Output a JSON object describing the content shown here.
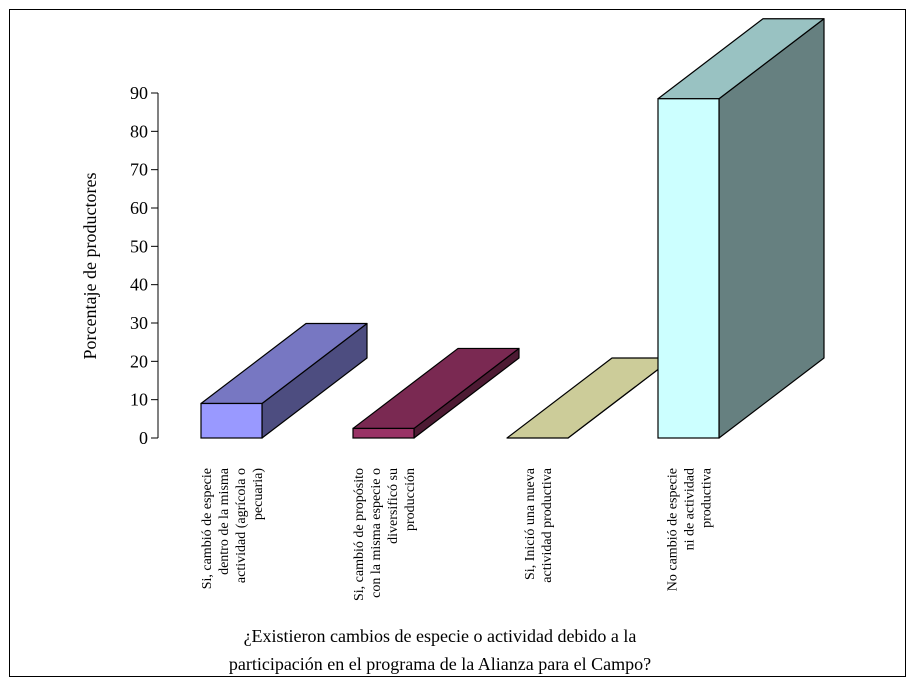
{
  "chart_data": {
    "type": "bar",
    "style": "3d-column",
    "categories": [
      [
        "Si, cambió de especie",
        "dentro de la misma",
        "actividad (agrícola o",
        "pecuaria)"
      ],
      [
        "Si, cambió de propósito",
        "con la misma especie o",
        "diversificó su",
        "producción"
      ],
      [
        "Si, Inició una nueva",
        "actividad productiva"
      ],
      [
        "No cambió de especie",
        "ni de actividad",
        "productiva"
      ]
    ],
    "values": [
      9,
      2.5,
      0,
      88.5
    ],
    "ylabel": "Porcentaje de productores",
    "xlabel": [
      "¿Existieron cambios de especie o actividad debido a la",
      "participación en el programa de la Alianza para el Campo?"
    ],
    "ylim": [
      0,
      90
    ],
    "yticks": [
      0,
      10,
      20,
      30,
      40,
      50,
      60,
      70,
      80,
      90
    ],
    "grid": false,
    "legend": "none",
    "colors": [
      {
        "front": "#9999ff",
        "side": "#4d4d80",
        "top": "#7777c2"
      },
      {
        "front": "#993366",
        "side": "#4d1a33",
        "top": "#7a2952"
      },
      {
        "front": "#ffffcc",
        "side": "#808066",
        "top": "#cccc99"
      },
      {
        "front": "#ccffff",
        "side": "#668080",
        "top": "#99c2c2"
      }
    ]
  }
}
